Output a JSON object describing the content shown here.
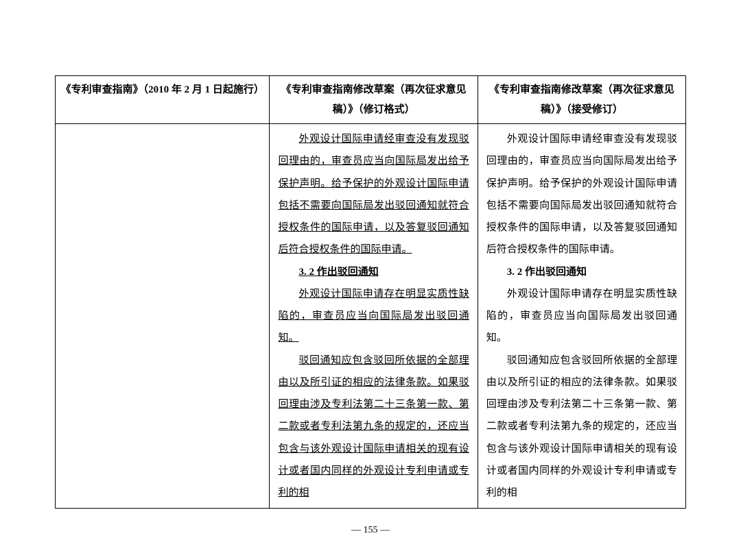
{
  "table": {
    "headers": [
      "《专利审查指南》（2010 年 2 月 1 日起施行）",
      "《专利审查指南修改草案（再次征求意见稿）》（修订格式）",
      "《专利审查指南修改草案（再次征求意见稿）》（接受修订）"
    ],
    "col2": {
      "p1": "外观设计国际申请经审查没有发现驳回理由的，审查员应当向国际局发出给予保护声明。给予保护的外观设计国际申请包括不需要向国际局发出驳回通知就符合授权条件的国际申请，以及答复驳回通知后符合授权条件的国际申请。",
      "sec": "3. 2 作出驳回通知",
      "p2": "外观设计国际申请存在明显实质性缺陷的，审查员应当向国际局发出驳回通知。",
      "p3": "驳回通知应包含驳回所依据的全部理由以及所引证的相应的法律条款。如果驳回理由涉及专利法第二十三条第一款、第二款或者专利法第九条的规定的，还应当包含与该外观设计国际申请相关的现有设计或者国内同样的外观设计专利申请或专利的相"
    },
    "col3": {
      "p1": "外观设计国际申请经审查没有发现驳回理由的，审查员应当向国际局发出给予保护声明。给予保护的外观设计国际申请包括不需要向国际局发出驳回通知就符合授权条件的国际申请，以及答复驳回通知后符合授权条件的国际申请。",
      "sec": "3. 2 作出驳回通知",
      "p2": "外观设计国际申请存在明显实质性缺陷的，审查员应当向国际局发出驳回通知。",
      "p3": "驳回通知应包含驳回所依据的全部理由以及所引证的相应的法律条款。如果驳回理由涉及专利法第二十三条第一款、第二款或者专利法第九条的规定的，还应当包含与该外观设计国际申请相关的现有设计或者国内同样的外观设计专利申请或专利的相"
    }
  },
  "page_number": "— 155 —"
}
